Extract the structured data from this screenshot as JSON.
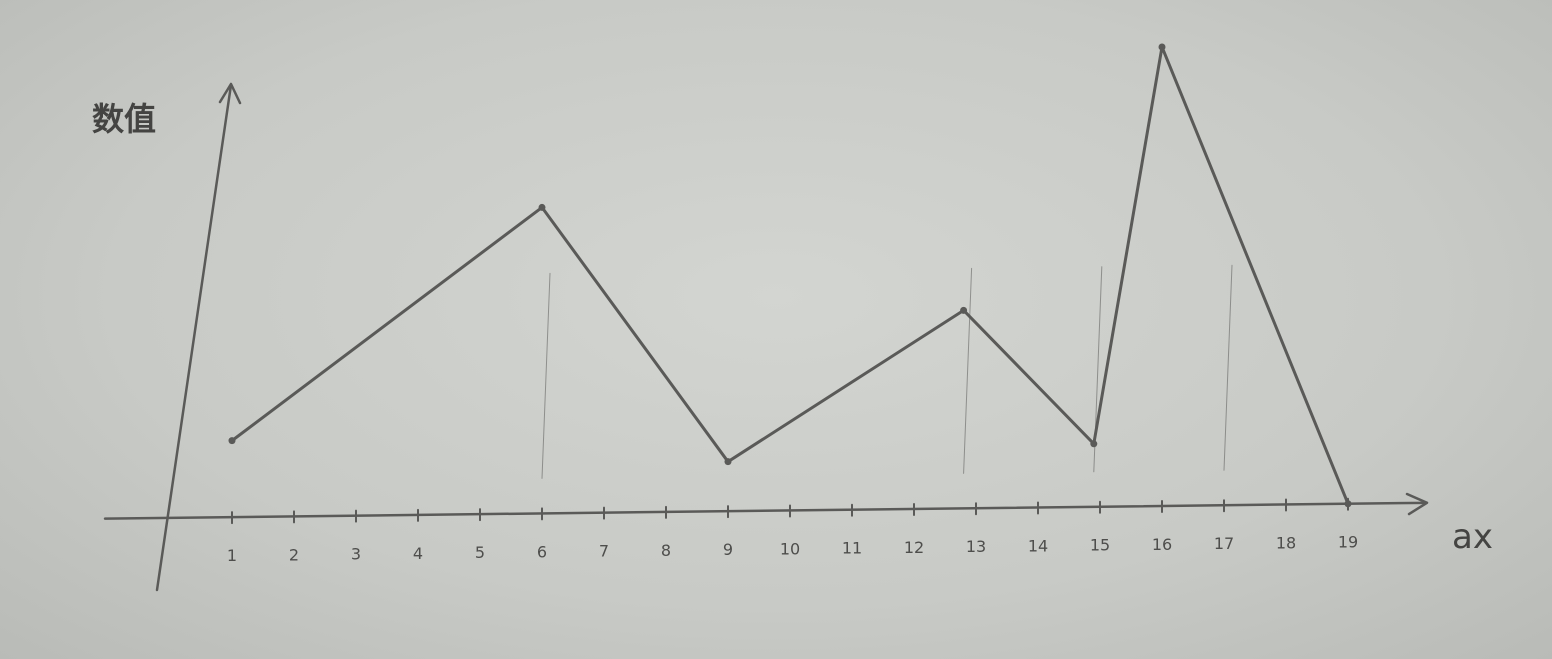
{
  "chart_data": {
    "type": "line",
    "ylabel": "数值",
    "xlabel": "ax",
    "x_ticks": [
      "1",
      "2",
      "3",
      "4",
      "5",
      "6",
      "7",
      "8",
      "9",
      "10",
      "11",
      "12",
      "13",
      "14",
      "15",
      "16",
      "17",
      "18",
      "19"
    ],
    "xlim": [
      0,
      19.5
    ],
    "ylim": [
      0,
      10
    ],
    "series": [
      {
        "points": [
          {
            "x": 1,
            "y": 1.7
          },
          {
            "x": 6,
            "y": 6.8
          },
          {
            "x": 9,
            "y": 1.1
          },
          {
            "x": 12.8,
            "y": 4.4
          },
          {
            "x": 14.9,
            "y": 1.4
          },
          {
            "x": 16,
            "y": 10.2
          },
          {
            "x": 19,
            "y": 0
          }
        ]
      }
    ],
    "dropline_xs": [
      6,
      12.8,
      14.9,
      17
    ],
    "grid": false,
    "style": "hand-drawn pencil sketch on paper",
    "colors": {
      "pencil": "#5a5a58",
      "paper": "#c9cbc7"
    }
  }
}
